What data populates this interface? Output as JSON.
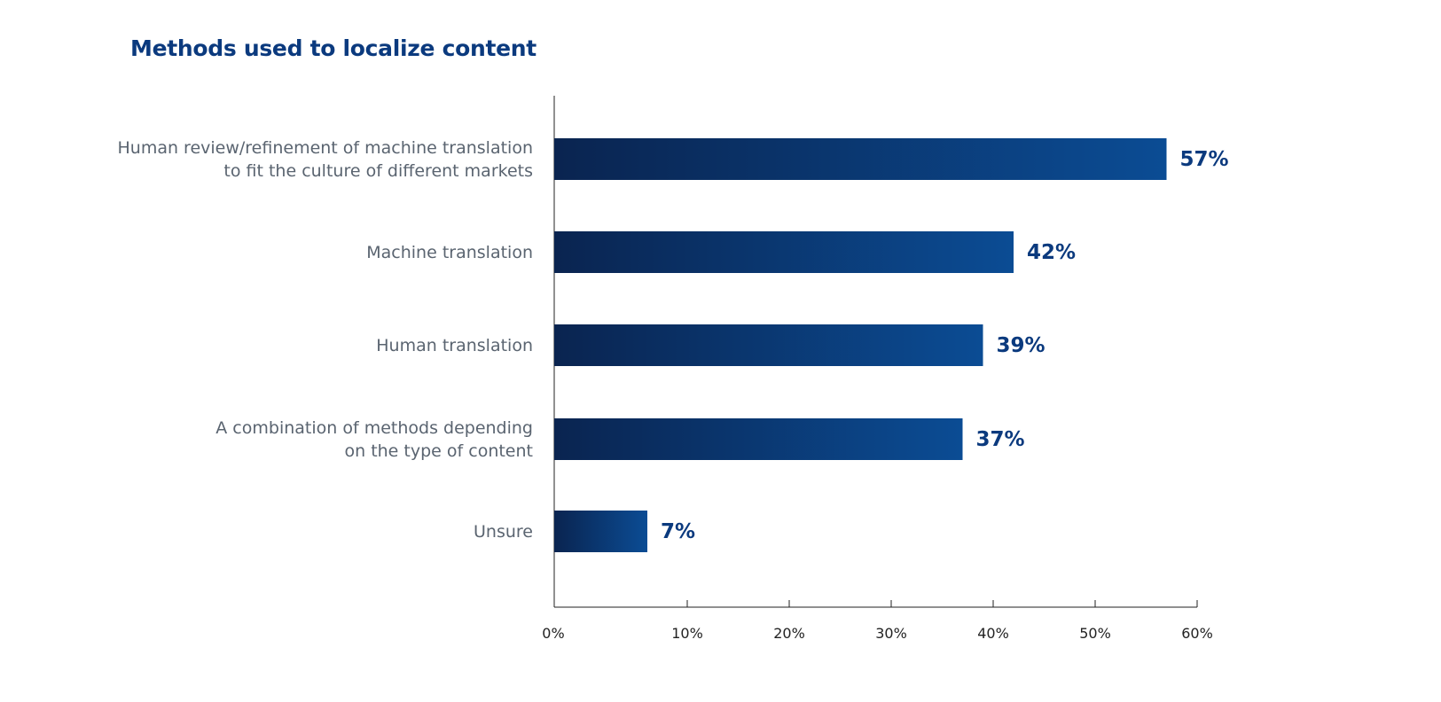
{
  "chart_data": {
    "type": "bar",
    "orientation": "horizontal",
    "title": "Methods used to localize content",
    "categories": [
      [
        "Human review/refinement of machine translation",
        "to fit the culture of different markets"
      ],
      [
        "Machine translation"
      ],
      [
        "Human translation"
      ],
      [
        "A combination of methods depending",
        "on the type of content"
      ],
      [
        "Unsure"
      ]
    ],
    "values": [
      57,
      42,
      39,
      37,
      7
    ],
    "value_labels": [
      "57%",
      "42%",
      "39%",
      "37%",
      "7%"
    ],
    "xlim": [
      0,
      60
    ],
    "x_ticks": [
      "0%",
      "10%",
      "20%",
      "30%",
      "40%",
      "50%",
      "60%"
    ],
    "grid": false,
    "colors": {
      "bar_start": "#0a2450",
      "bar_end": "#0b4c94",
      "title": "#0b3a7e",
      "value_label": "#0b3a7e"
    }
  }
}
